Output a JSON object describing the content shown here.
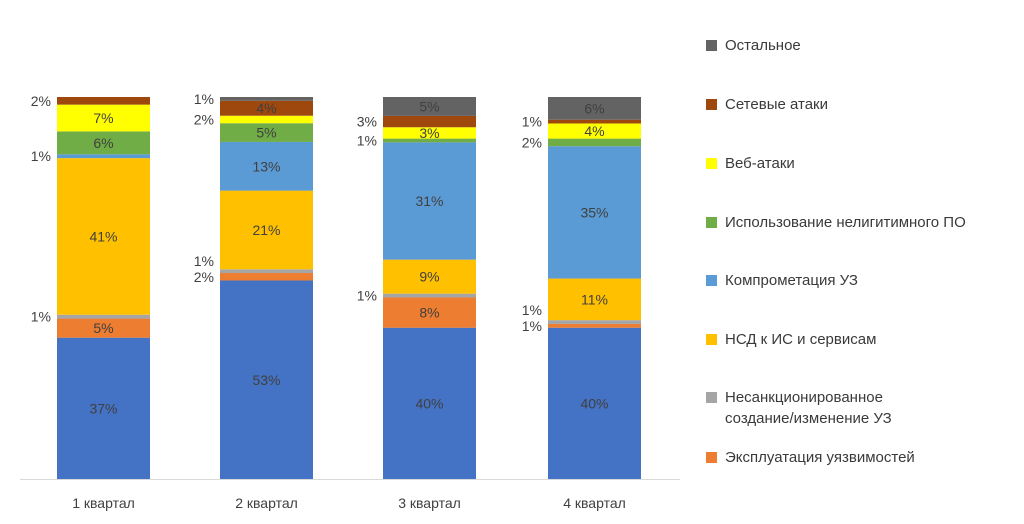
{
  "chart_data": {
    "type": "bar",
    "stacked": true,
    "normalized_percent": true,
    "categories": [
      "1 квартал",
      "2 квартал",
      "3 квартал",
      "4 квартал"
    ],
    "series": [
      {
        "name": "Эксплуатация уязвимостей",
        "color": "#ED7D31",
        "values": [
          5,
          2,
          8,
          1
        ],
        "labels": [
          "5%",
          "2%",
          "8%",
          "1%"
        ],
        "label_side": [
          "inside",
          "left",
          "inside",
          "left"
        ]
      },
      {
        "name": "Несанкционированное\nсоздание/изменение УЗ",
        "color": "#A5A5A5",
        "values": [
          1,
          1,
          1,
          1
        ],
        "labels": [
          "1%",
          "1%",
          "1%",
          "1%"
        ],
        "label_side": [
          "left",
          "left",
          "left",
          "left"
        ]
      },
      {
        "name": "НСД к ИС и сервисам",
        "color": "#FFC000",
        "values": [
          41,
          21,
          9,
          11
        ],
        "labels": [
          "41%",
          "21%",
          "9%",
          "11%"
        ],
        "label_side": [
          "inside",
          "inside",
          "inside",
          "inside"
        ]
      },
      {
        "name": "Компрометация УЗ",
        "color": "#5B9BD5",
        "values": [
          1,
          13,
          31,
          35
        ],
        "labels": [
          "1%",
          "13%",
          "31%",
          "35%"
        ],
        "label_side": [
          "left",
          "inside",
          "inside",
          "inside"
        ]
      },
      {
        "name": "Использование нелигитимного ПО",
        "color": "#70AD47",
        "values": [
          6,
          5,
          1,
          2
        ],
        "labels": [
          "6%",
          "5%",
          "1%",
          "2%"
        ],
        "label_side": [
          "inside",
          "inside",
          "left",
          "left"
        ]
      },
      {
        "name": "Веб-атаки",
        "color": "#FFFF00",
        "values": [
          7,
          2,
          3,
          4
        ],
        "labels": [
          "7%",
          "2%",
          "3%",
          "4%"
        ],
        "label_side": [
          "inside",
          "left",
          "inside",
          "inside"
        ]
      },
      {
        "name": "Сетевые атаки",
        "color": "#9E480E",
        "values": [
          2,
          4,
          3,
          1
        ],
        "labels": [
          "2%",
          "4%",
          "3%",
          "1%"
        ],
        "label_side": [
          "left",
          "inside",
          "left",
          "left"
        ]
      },
      {
        "name": "Остальное",
        "color": "#636363",
        "values": [
          0,
          1,
          5,
          6
        ],
        "labels": [
          "",
          "1%",
          "5%",
          "6%"
        ],
        "label_side": [
          "none",
          "left",
          "inside",
          "inside"
        ]
      }
    ],
    "base_series": {
      "name": "",
      "color": "#4472C4",
      "values": [
        37,
        53,
        40,
        40
      ],
      "labels": [
        "37%",
        "53%",
        "40%",
        "40%"
      ]
    },
    "ylim": [
      0,
      100
    ],
    "grid": false,
    "legend_position": "right",
    "title": "",
    "xlabel": "",
    "ylabel": ""
  }
}
